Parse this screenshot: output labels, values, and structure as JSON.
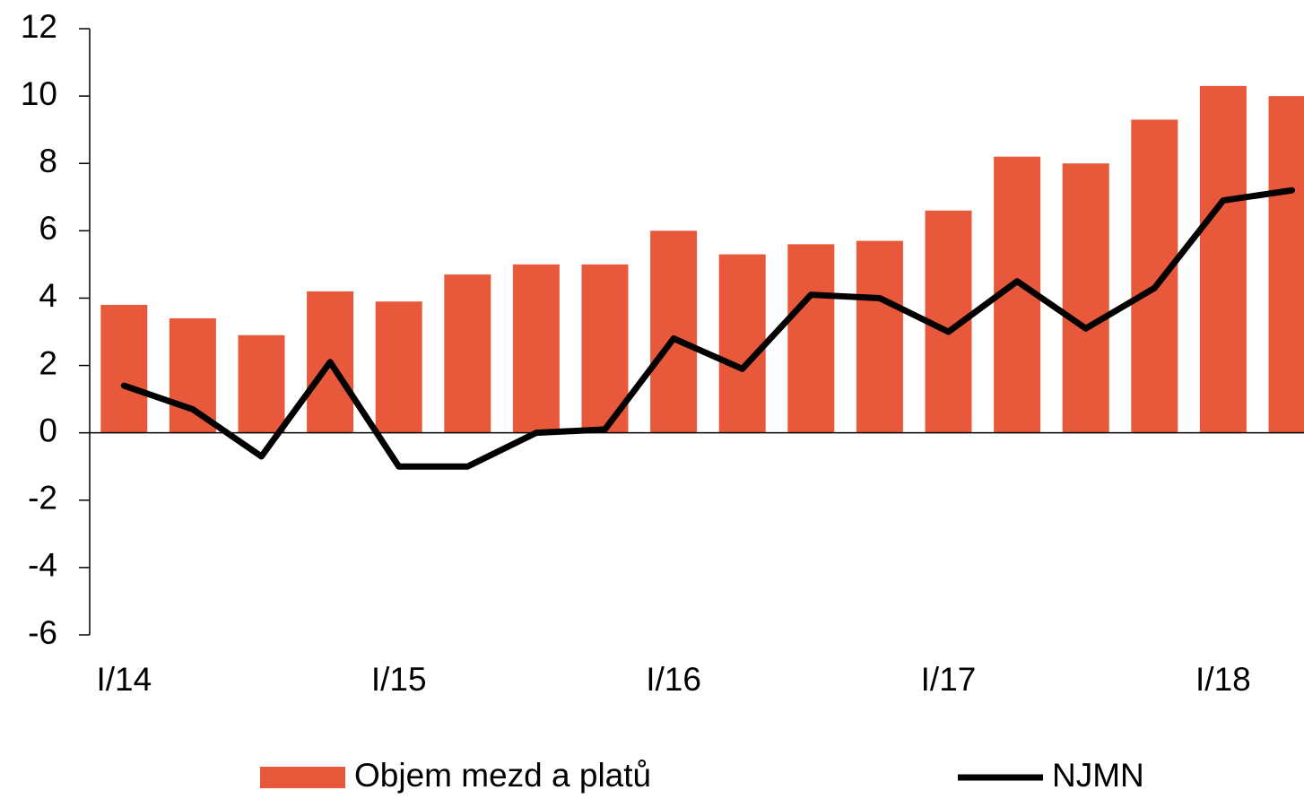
{
  "chart_data": {
    "type": "bar_line",
    "categories": [
      "I/14",
      null,
      null,
      null,
      "I/15",
      null,
      null,
      null,
      "I/16",
      null,
      null,
      null,
      "I/17",
      null,
      null,
      null,
      "I/18",
      null
    ],
    "series": [
      {
        "name": "Objem mezd a platů",
        "type": "bar",
        "color": "#e8593c",
        "values": [
          3.8,
          3.4,
          2.9,
          4.2,
          3.9,
          4.7,
          5.0,
          5.0,
          6.0,
          5.3,
          5.6,
          5.7,
          6.6,
          8.2,
          8.0,
          9.3,
          10.3,
          10.0
        ]
      },
      {
        "name": "NJMN",
        "type": "line",
        "color": "#000000",
        "values": [
          1.4,
          0.7,
          -0.7,
          2.1,
          -1.0,
          -1.0,
          0.0,
          0.1,
          2.8,
          1.9,
          4.1,
          4.0,
          3.0,
          4.5,
          3.1,
          4.3,
          6.9,
          7.2
        ]
      }
    ],
    "ylim": [
      -6,
      12
    ],
    "yticks": [
      -6,
      -4,
      -2,
      0,
      2,
      4,
      6,
      8,
      10,
      12
    ],
    "grid": false
  }
}
